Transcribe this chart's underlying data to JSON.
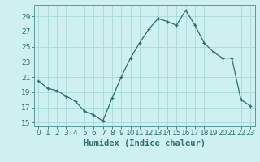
{
  "x": [
    0,
    1,
    2,
    3,
    4,
    5,
    6,
    7,
    8,
    9,
    10,
    11,
    12,
    13,
    14,
    15,
    16,
    17,
    18,
    19,
    20,
    21,
    22,
    23
  ],
  "y": [
    20.5,
    19.5,
    19.2,
    18.5,
    17.8,
    16.5,
    16.0,
    15.2,
    18.2,
    21.0,
    23.5,
    25.5,
    27.3,
    28.7,
    28.3,
    27.8,
    29.8,
    27.8,
    25.5,
    24.3,
    23.5,
    23.5,
    18.0,
    17.2
  ],
  "line_color": "#2d6e6e",
  "marker": "+",
  "marker_size": 3,
  "bg_color": "#cff0f0",
  "grid_color": "#a8d8d8",
  "xlabel": "Humidex (Indice chaleur)",
  "ylim": [
    14.5,
    30.5
  ],
  "xlim": [
    -0.5,
    23.5
  ],
  "yticks": [
    15,
    17,
    19,
    21,
    23,
    25,
    27,
    29
  ],
  "xticks": [
    0,
    1,
    2,
    3,
    4,
    5,
    6,
    7,
    8,
    9,
    10,
    11,
    12,
    13,
    14,
    15,
    16,
    17,
    18,
    19,
    20,
    21,
    22,
    23
  ],
  "tick_fontsize": 6.5,
  "xlabel_fontsize": 7.5
}
